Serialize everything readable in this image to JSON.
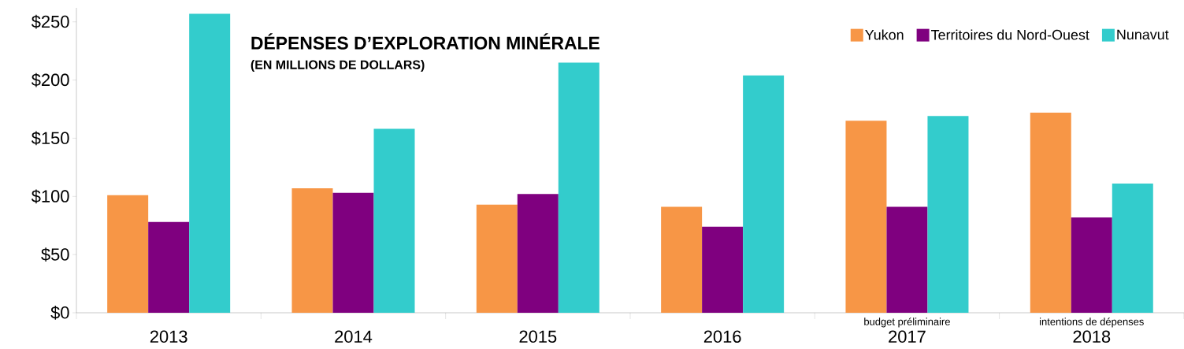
{
  "chart_data": {
    "type": "bar",
    "title": "DÉPENSES D’EXPLORATION MINÉRALE",
    "subtitle": "(EN MILLIONS DE DOLLARS)",
    "categories": [
      "2013",
      "2014",
      "2015",
      "2016",
      "2017",
      "2018"
    ],
    "series": [
      {
        "name": "Yukon",
        "color": "#f79646",
        "values": [
          101,
          107,
          93,
          91,
          165,
          172
        ]
      },
      {
        "name": "Territoires du Nord-Ouest",
        "color": "#7f007f",
        "values": [
          78,
          103,
          102,
          74,
          91,
          82
        ]
      },
      {
        "name": "Nunavut",
        "color": "#33cccc",
        "values": [
          257,
          158,
          215,
          204,
          169,
          111
        ]
      }
    ],
    "ylim": [
      0,
      262
    ],
    "yticks": [
      {
        "value": 0,
        "label": "$0"
      },
      {
        "value": 50,
        "label": "$50"
      },
      {
        "value": 100,
        "label": "$100"
      },
      {
        "value": 150,
        "label": "$150"
      },
      {
        "value": 200,
        "label": "$200"
      },
      {
        "value": 250,
        "label": "$250"
      }
    ],
    "annotations": [
      "budget préliminaire",
      "intentions de dépenses"
    ],
    "legend": "top right",
    "grid": false
  }
}
